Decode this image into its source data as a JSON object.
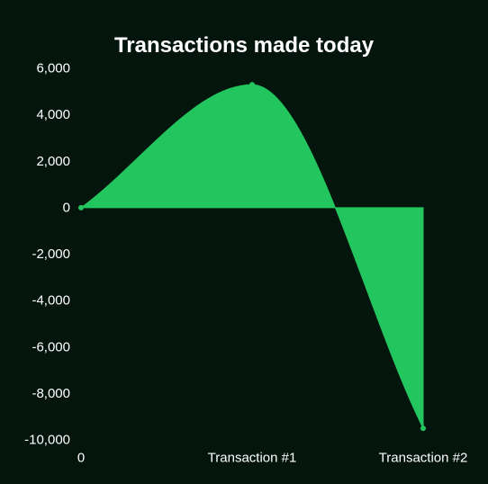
{
  "chart_data": {
    "type": "area",
    "title": "Transactions made today",
    "xlabel": "",
    "ylabel": "",
    "categories": [
      "0",
      "Transaction #1",
      "Transaction #2"
    ],
    "series": [
      {
        "values": [
          0,
          5300,
          -9500
        ]
      }
    ],
    "ylim": [
      -10000,
      6000
    ],
    "yticks": [
      6000,
      4000,
      2000,
      0,
      -2000,
      -4000,
      -6000,
      -8000,
      -10000
    ],
    "ytick_labels": [
      "6,000",
      "4,000",
      "2,000",
      "0",
      "-2,000",
      "-4,000",
      "-6,000",
      "-8,000",
      "-10,000"
    ],
    "grid": false,
    "legend": "none",
    "colors": {
      "background": "#03150d",
      "area": "#22c55e",
      "text": "#ffffff"
    }
  }
}
